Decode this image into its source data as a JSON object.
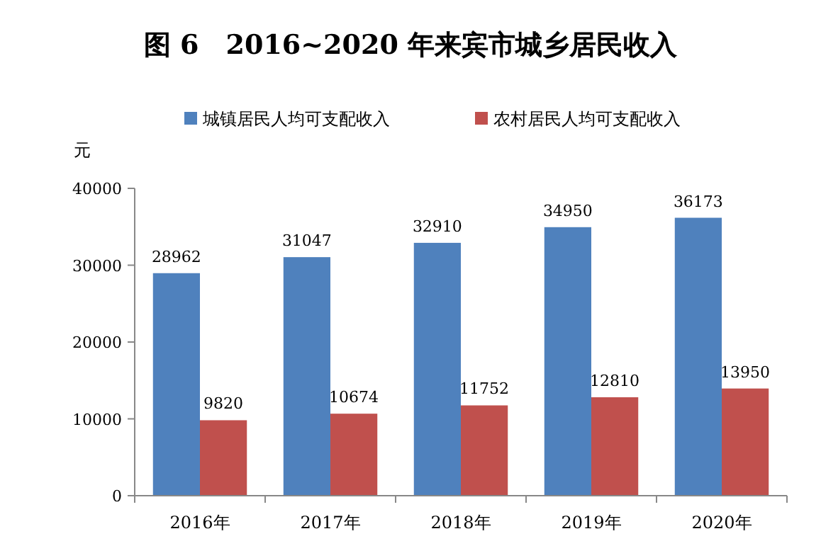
{
  "chart_data": {
    "type": "bar",
    "title": "图 6　2016~2020 年来宾市城乡居民收入",
    "ylabel": "元",
    "categories": [
      "2016年",
      "2017年",
      "2018年",
      "2019年",
      "2020年"
    ],
    "series": [
      {
        "name": "城镇居民人均可支配收入",
        "color": "#4f81bd",
        "values": [
          28962,
          31047,
          32910,
          34950,
          36173
        ]
      },
      {
        "name": "农村居民人均可支配收入",
        "color": "#c0504d",
        "values": [
          9820,
          10674,
          11752,
          12810,
          13950
        ]
      }
    ],
    "ylim": [
      0,
      40000
    ],
    "yticks": [
      0,
      10000,
      20000,
      30000,
      40000
    ],
    "data_labels": true,
    "legend": "top",
    "grid": false
  }
}
